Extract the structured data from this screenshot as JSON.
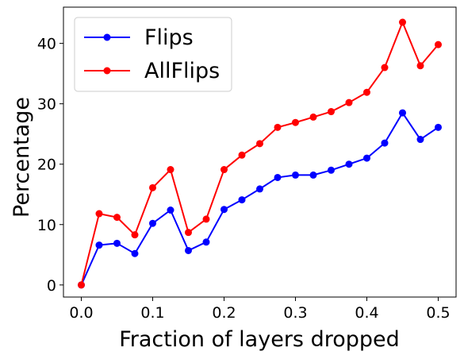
{
  "chart_data": {
    "type": "line",
    "title": "",
    "xlabel": "Fraction of layers dropped",
    "ylabel": "Percentage",
    "xlim": [
      -0.025,
      0.525
    ],
    "ylim": [
      -2,
      46
    ],
    "xticks": [
      0.0,
      0.1,
      0.2,
      0.3,
      0.4,
      0.5
    ],
    "xtick_labels": [
      "0.0",
      "0.1",
      "0.2",
      "0.3",
      "0.4",
      "0.5"
    ],
    "yticks": [
      0,
      10,
      20,
      30,
      40
    ],
    "ytick_labels": [
      "0",
      "10",
      "20",
      "30",
      "40"
    ],
    "grid": false,
    "legend": {
      "position": "top-left"
    },
    "x": [
      0.0,
      0.025,
      0.05,
      0.075,
      0.1,
      0.125,
      0.15,
      0.175,
      0.2,
      0.225,
      0.25,
      0.275,
      0.3,
      0.325,
      0.35,
      0.375,
      0.4,
      0.425,
      0.45,
      0.475,
      0.5
    ],
    "series": [
      {
        "name": "Flips",
        "color": "#0000ff",
        "marker": "circle",
        "values": [
          0.0,
          6.6,
          6.9,
          5.2,
          10.2,
          12.4,
          5.7,
          7.1,
          12.5,
          14.1,
          15.9,
          17.8,
          18.2,
          18.2,
          19.0,
          20.0,
          21.0,
          23.5,
          28.5,
          24.1,
          26.1
        ]
      },
      {
        "name": "AllFlips",
        "color": "#ff0000",
        "marker": "circle",
        "values": [
          0.0,
          11.8,
          11.2,
          8.3,
          16.1,
          19.1,
          8.7,
          10.9,
          19.1,
          21.5,
          23.4,
          26.1,
          26.9,
          27.8,
          28.7,
          30.2,
          31.9,
          36.0,
          43.5,
          36.3,
          39.8
        ]
      }
    ]
  }
}
